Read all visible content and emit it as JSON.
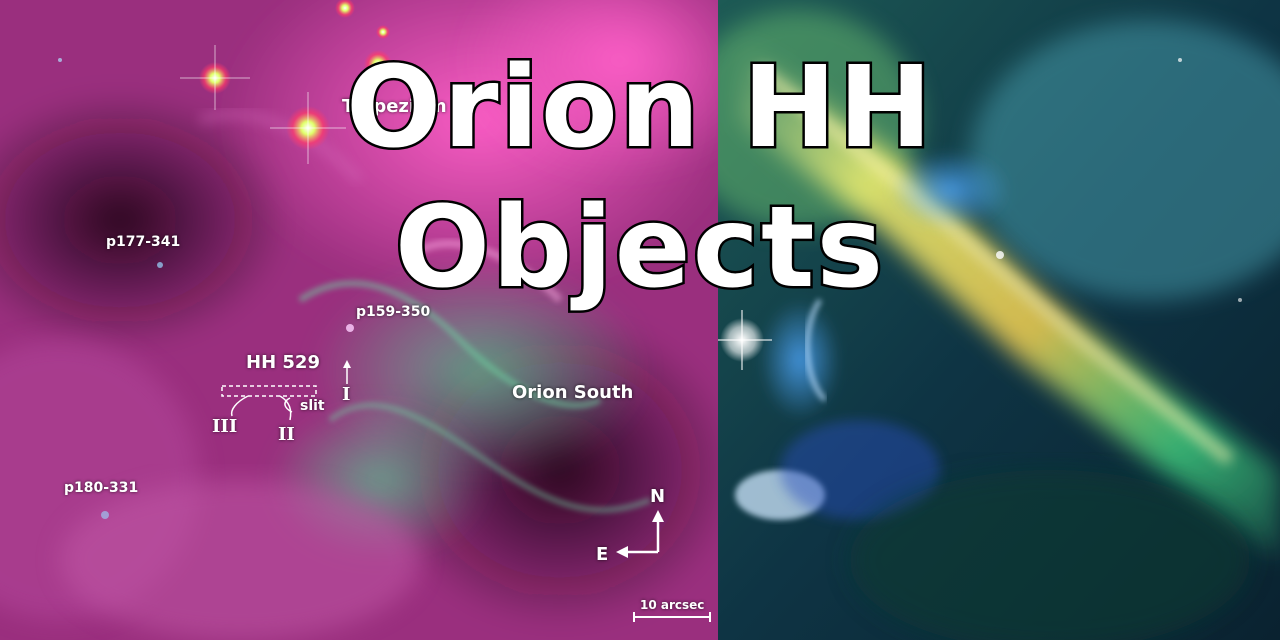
{
  "title": {
    "line1": "Orion HH",
    "line2": "Objects"
  },
  "labels": {
    "trapezium": "Trapezium",
    "p177": "p177-341",
    "p159": "p159-350",
    "hh529": "HH 529",
    "orion_south": "Orion South",
    "slit": "slit",
    "roman_i": "I",
    "roman_ii": "II",
    "roman_iii": "III",
    "p180": "p180-331",
    "compass_n": "N",
    "compass_e": "E",
    "scale_bar": "10 arcsec"
  },
  "colors": {
    "left_panel_base": "#b0388f",
    "left_panel_highlight": "#ff4fbf",
    "filament_green": "#3fae7a",
    "right_panel_base": "#0f3a4a",
    "right_band_yellow": "#e8e25a",
    "right_band_green": "#3fd07a",
    "right_glow_blue": "#3a8fe0"
  },
  "icons": {
    "compass": "compass-arrows-icon",
    "scale": "scale-bar-icon"
  }
}
